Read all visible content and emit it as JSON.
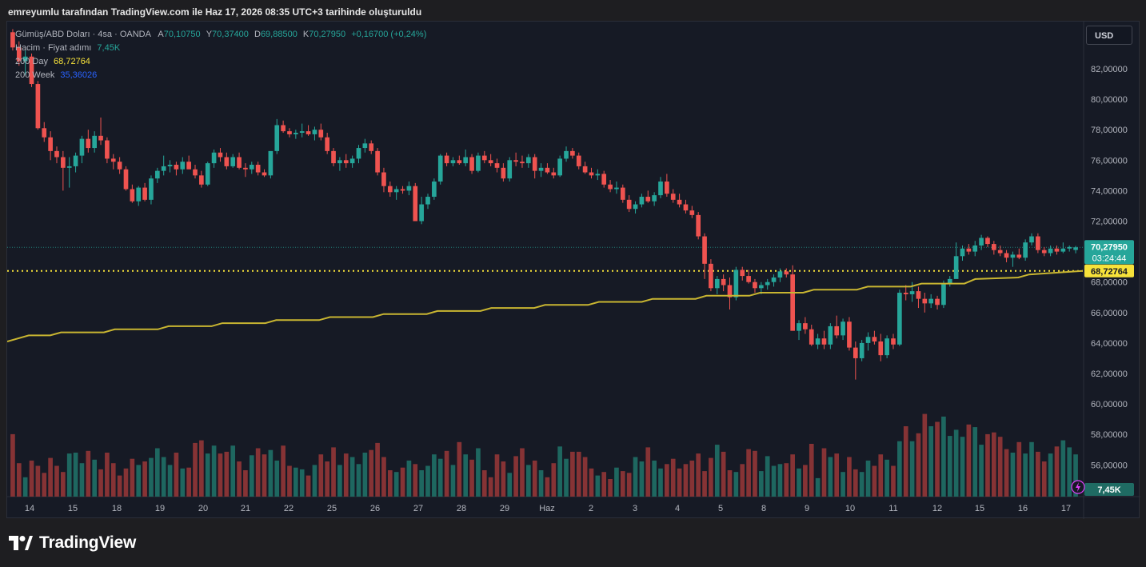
{
  "caption": "emreyumlu tarafından TradingView.com ile Haz 17, 2026 08:35 UTC+3 tarihinde oluşturuldu",
  "legend": {
    "symbol": "Gümüş/ABD Doları · 4sa · OANDA",
    "o_label": "A",
    "o": "70,10750",
    "h_label": "Y",
    "h": "70,37400",
    "l_label": "D",
    "l": "69,88500",
    "c_label": "K",
    "c": "70,27950",
    "change": "+0,16700 (+0,24%)",
    "volume_label": "Hacim · Fiyat adımı",
    "volume_value": "7,45K",
    "ma200d_label": "200 Day",
    "ma200d_value": "68,72764",
    "ma200w_label": "200 Week",
    "ma200w_value": "35,36026"
  },
  "currency": "USD",
  "brand": "TradingView",
  "colors": {
    "up": "#26a69a",
    "down": "#ef5350",
    "ma": "#c8b531",
    "panel": "#161a25"
  },
  "chart_data": {
    "type": "candlestick",
    "ylim": [
      61.5,
      84.2
    ],
    "y_ticks": [
      "82,00000",
      "80,00000",
      "78,00000",
      "76,00000",
      "74,00000",
      "72,00000",
      "70,00000",
      "68,00000",
      "66,00000",
      "64,00000",
      "62,00000",
      "60,00000",
      "58,00000",
      "56,00000"
    ],
    "x_ticks": [
      "14",
      "15",
      "18",
      "19",
      "20",
      "21",
      "22",
      "25",
      "26",
      "27",
      "28",
      "29",
      "Haz",
      "2",
      "3",
      "4",
      "5",
      "8",
      "9",
      "10",
      "11",
      "12",
      "15",
      "16",
      "17"
    ],
    "price_label": {
      "value": "70,27950",
      "countdown": "03:24:44"
    },
    "ma_label": "68,72764",
    "volume_label": "7,45K",
    "candles_ohlc": [
      [
        84.4,
        84.6,
        83.2,
        83.4
      ],
      [
        83.4,
        83.8,
        82.2,
        82.5
      ],
      [
        82.5,
        83.2,
        81.6,
        82.8
      ],
      [
        82.8,
        83.0,
        80.8,
        81.0
      ],
      [
        81.0,
        81.2,
        78.0,
        78.1
      ],
      [
        78.1,
        78.5,
        77.2,
        77.5
      ],
      [
        77.5,
        77.9,
        76.0,
        76.6
      ],
      [
        76.6,
        76.9,
        75.8,
        76.2
      ],
      [
        76.2,
        76.6,
        74.0,
        75.5
      ],
      [
        75.5,
        76.2,
        74.2,
        75.6
      ],
      [
        75.6,
        76.5,
        75.2,
        76.3
      ],
      [
        76.3,
        77.6,
        75.8,
        77.4
      ],
      [
        77.4,
        78.0,
        76.5,
        76.8
      ],
      [
        76.8,
        77.9,
        76.5,
        77.6
      ],
      [
        77.6,
        78.8,
        77.0,
        77.3
      ],
      [
        77.3,
        77.5,
        75.8,
        76.1
      ],
      [
        76.1,
        76.4,
        75.4,
        75.9
      ],
      [
        75.9,
        76.2,
        75.1,
        75.4
      ],
      [
        75.4,
        75.6,
        74.0,
        74.1
      ],
      [
        74.1,
        74.4,
        73.2,
        73.3
      ],
      [
        73.3,
        74.3,
        73.0,
        74.2
      ],
      [
        74.2,
        74.5,
        73.3,
        73.4
      ],
      [
        73.4,
        75.0,
        73.1,
        74.8
      ],
      [
        74.8,
        75.5,
        74.5,
        75.3
      ],
      [
        75.3,
        76.3,
        75.0,
        75.6
      ],
      [
        75.6,
        76.0,
        75.2,
        75.7
      ],
      [
        75.7,
        75.9,
        75.0,
        75.4
      ],
      [
        75.4,
        76.2,
        75.1,
        75.9
      ],
      [
        75.9,
        76.3,
        75.5,
        75.4
      ],
      [
        75.4,
        75.7,
        74.8,
        75.0
      ],
      [
        75.0,
        75.3,
        74.2,
        74.4
      ],
      [
        74.4,
        75.9,
        74.3,
        75.8
      ],
      [
        75.8,
        76.7,
        75.5,
        76.5
      ],
      [
        76.5,
        76.8,
        75.9,
        76.2
      ],
      [
        76.2,
        76.5,
        75.4,
        75.6
      ],
      [
        75.6,
        76.4,
        75.5,
        76.2
      ],
      [
        76.2,
        76.5,
        75.4,
        75.5
      ],
      [
        75.5,
        75.8,
        74.9,
        75.4
      ],
      [
        75.4,
        75.9,
        75.1,
        75.7
      ],
      [
        75.7,
        75.9,
        75.0,
        75.2
      ],
      [
        75.2,
        75.4,
        74.9,
        75.0
      ],
      [
        75.0,
        76.0,
        74.8,
        76.6
      ],
      [
        76.6,
        78.7,
        76.4,
        78.3
      ],
      [
        78.3,
        78.6,
        77.8,
        77.9
      ],
      [
        77.9,
        78.1,
        77.5,
        77.7
      ],
      [
        77.7,
        78.0,
        77.4,
        77.8
      ],
      [
        77.8,
        78.4,
        77.5,
        77.9
      ],
      [
        77.9,
        78.3,
        77.6,
        77.7
      ],
      [
        77.7,
        78.2,
        77.3,
        78.0
      ],
      [
        78.0,
        78.4,
        77.3,
        77.5
      ],
      [
        77.5,
        77.8,
        76.4,
        76.6
      ],
      [
        76.6,
        76.8,
        75.6,
        75.8
      ],
      [
        75.8,
        76.2,
        75.3,
        76.0
      ],
      [
        76.0,
        76.4,
        75.5,
        75.8
      ],
      [
        75.8,
        76.3,
        75.5,
        76.1
      ],
      [
        76.1,
        77.0,
        75.8,
        76.8
      ],
      [
        76.8,
        77.4,
        76.5,
        77.1
      ],
      [
        77.1,
        77.3,
        76.4,
        76.6
      ],
      [
        76.6,
        76.8,
        75.0,
        75.2
      ],
      [
        75.2,
        75.5,
        73.9,
        74.3
      ],
      [
        74.3,
        74.6,
        73.6,
        73.9
      ],
      [
        73.9,
        74.3,
        73.4,
        74.1
      ],
      [
        74.1,
        74.3,
        73.8,
        74.0
      ],
      [
        74.0,
        74.6,
        73.7,
        74.3
      ],
      [
        74.3,
        74.5,
        72.8,
        72.0
      ],
      [
        72.0,
        73.6,
        71.8,
        73.1
      ],
      [
        73.1,
        73.8,
        72.8,
        73.6
      ],
      [
        73.6,
        74.8,
        73.4,
        74.6
      ],
      [
        74.6,
        76.4,
        74.4,
        76.3
      ],
      [
        76.3,
        76.5,
        75.6,
        75.8
      ],
      [
        75.8,
        76.2,
        75.6,
        76.0
      ],
      [
        76.0,
        76.3,
        75.7,
        75.8
      ],
      [
        75.8,
        76.7,
        75.6,
        76.2
      ],
      [
        76.2,
        76.4,
        75.1,
        75.3
      ],
      [
        75.3,
        76.5,
        75.2,
        76.3
      ],
      [
        76.3,
        76.6,
        75.8,
        76.0
      ],
      [
        76.0,
        76.4,
        75.6,
        75.8
      ],
      [
        75.8,
        76.1,
        75.2,
        75.5
      ],
      [
        75.5,
        75.8,
        74.6,
        74.8
      ],
      [
        74.8,
        76.2,
        74.6,
        76.0
      ],
      [
        76.0,
        76.5,
        75.6,
        75.9
      ],
      [
        75.9,
        76.3,
        75.5,
        75.8
      ],
      [
        75.8,
        76.4,
        75.5,
        76.2
      ],
      [
        76.2,
        76.4,
        74.8,
        75.3
      ],
      [
        75.3,
        75.8,
        74.9,
        75.5
      ],
      [
        75.5,
        75.8,
        75.1,
        75.2
      ],
      [
        75.2,
        75.5,
        74.8,
        75.0
      ],
      [
        75.0,
        76.3,
        74.9,
        76.1
      ],
      [
        76.1,
        76.9,
        75.9,
        76.6
      ],
      [
        76.6,
        76.8,
        76.1,
        76.3
      ],
      [
        76.3,
        76.5,
        75.4,
        75.6
      ],
      [
        75.6,
        75.9,
        75.1,
        75.2
      ],
      [
        75.2,
        75.5,
        74.8,
        75.0
      ],
      [
        75.0,
        75.4,
        74.7,
        75.1
      ],
      [
        75.1,
        75.3,
        74.2,
        74.4
      ],
      [
        74.4,
        74.7,
        73.9,
        74.1
      ],
      [
        74.1,
        74.6,
        73.8,
        74.2
      ],
      [
        74.2,
        74.4,
        73.2,
        73.4
      ],
      [
        73.4,
        73.7,
        72.6,
        72.8
      ],
      [
        72.8,
        73.3,
        72.5,
        73.1
      ],
      [
        73.1,
        73.8,
        72.9,
        73.6
      ],
      [
        73.6,
        74.0,
        73.2,
        73.3
      ],
      [
        73.3,
        73.9,
        73.0,
        73.7
      ],
      [
        73.7,
        74.9,
        73.5,
        74.6
      ],
      [
        74.6,
        75.1,
        73.6,
        73.8
      ],
      [
        73.8,
        74.1,
        73.2,
        73.4
      ],
      [
        73.4,
        73.8,
        72.9,
        73.1
      ],
      [
        73.1,
        73.4,
        72.5,
        72.7
      ],
      [
        72.7,
        73.0,
        72.2,
        72.4
      ],
      [
        72.4,
        72.6,
        70.8,
        71.0
      ],
      [
        71.0,
        71.2,
        68.2,
        69.2
      ],
      [
        69.2,
        69.5,
        67.4,
        67.6
      ],
      [
        67.6,
        68.4,
        67.2,
        68.2
      ],
      [
        68.2,
        68.5,
        67.4,
        67.8
      ],
      [
        67.8,
        68.3,
        66.2,
        67.0
      ],
      [
        67.0,
        69.0,
        66.8,
        68.8
      ],
      [
        68.8,
        69.0,
        68.1,
        68.4
      ],
      [
        68.4,
        68.8,
        67.9,
        68.0
      ],
      [
        68.0,
        68.2,
        67.3,
        67.6
      ],
      [
        67.6,
        68.0,
        67.2,
        67.8
      ],
      [
        67.8,
        68.2,
        67.5,
        68.0
      ],
      [
        68.0,
        68.5,
        67.7,
        68.3
      ],
      [
        68.3,
        68.9,
        68.0,
        68.7
      ],
      [
        68.7,
        68.9,
        68.3,
        68.5
      ],
      [
        68.5,
        69.1,
        67.9,
        64.8
      ],
      [
        64.8,
        65.5,
        64.2,
        65.3
      ],
      [
        65.3,
        65.7,
        64.6,
        64.9
      ],
      [
        64.9,
        65.2,
        63.8,
        63.9
      ],
      [
        63.9,
        64.6,
        63.6,
        64.3
      ],
      [
        64.3,
        64.8,
        63.6,
        63.9
      ],
      [
        63.9,
        65.3,
        63.6,
        65.1
      ],
      [
        65.1,
        65.8,
        64.3,
        64.5
      ],
      [
        64.5,
        65.6,
        64.2,
        65.4
      ],
      [
        65.4,
        65.7,
        63.5,
        63.7
      ],
      [
        63.7,
        64.1,
        61.6,
        63.0
      ],
      [
        63.0,
        64.2,
        62.8,
        64.0
      ],
      [
        64.0,
        64.7,
        63.5,
        64.4
      ],
      [
        64.4,
        64.8,
        63.9,
        64.1
      ],
      [
        64.1,
        64.6,
        62.8,
        63.2
      ],
      [
        63.2,
        64.5,
        63.0,
        64.3
      ],
      [
        64.3,
        64.6,
        63.6,
        63.9
      ],
      [
        63.9,
        67.5,
        63.8,
        67.3
      ],
      [
        67.3,
        67.8,
        66.8,
        67.2
      ],
      [
        67.2,
        68.0,
        66.7,
        67.4
      ],
      [
        67.4,
        67.7,
        66.3,
        66.9
      ],
      [
        66.9,
        67.3,
        66.0,
        66.6
      ],
      [
        66.6,
        67.2,
        66.3,
        66.9
      ],
      [
        66.9,
        67.1,
        66.2,
        66.5
      ],
      [
        66.5,
        68.1,
        66.3,
        67.9
      ],
      [
        67.9,
        68.4,
        67.7,
        68.2
      ],
      [
        68.2,
        70.6,
        69.2,
        69.7
      ],
      [
        69.7,
        70.4,
        69.4,
        70.2
      ],
      [
        70.2,
        70.5,
        69.8,
        70.0
      ],
      [
        70.0,
        70.7,
        69.7,
        70.4
      ],
      [
        70.4,
        71.1,
        70.1,
        70.9
      ],
      [
        70.9,
        71.0,
        70.3,
        70.5
      ],
      [
        70.5,
        70.7,
        69.8,
        70.1
      ],
      [
        70.1,
        70.4,
        69.7,
        69.9
      ],
      [
        69.9,
        70.1,
        69.3,
        69.6
      ],
      [
        69.6,
        70.0,
        69.0,
        69.8
      ],
      [
        69.8,
        70.2,
        69.5,
        69.6
      ],
      [
        69.6,
        70.8,
        69.4,
        70.6
      ],
      [
        70.6,
        71.2,
        70.4,
        71.0
      ],
      [
        71.0,
        71.2,
        69.9,
        70.1
      ],
      [
        70.1,
        70.3,
        69.7,
        69.9
      ],
      [
        69.9,
        70.4,
        69.7,
        70.2
      ],
      [
        70.2,
        70.4,
        69.8,
        70.0
      ],
      [
        70.0,
        70.6,
        69.9,
        70.2
      ],
      [
        70.2,
        70.4,
        70.0,
        70.3
      ],
      [
        70.1075,
        70.374,
        69.885,
        70.2795
      ]
    ],
    "volume_max": 1.0,
    "volumes": [
      0.71,
      0.38,
      0.22,
      0.41,
      0.35,
      0.27,
      0.44,
      0.35,
      0.28,
      0.49,
      0.5,
      0.38,
      0.52,
      0.42,
      0.31,
      0.5,
      0.38,
      0.24,
      0.32,
      0.43,
      0.36,
      0.4,
      0.44,
      0.55,
      0.45,
      0.36,
      0.5,
      0.32,
      0.33,
      0.61,
      0.64,
      0.49,
      0.58,
      0.49,
      0.51,
      0.58,
      0.4,
      0.3,
      0.47,
      0.55,
      0.48,
      0.53,
      0.41,
      0.58,
      0.35,
      0.33,
      0.31,
      0.24,
      0.36,
      0.48,
      0.4,
      0.56,
      0.36,
      0.49,
      0.45,
      0.37,
      0.5,
      0.53,
      0.61,
      0.45,
      0.3,
      0.28,
      0.33,
      0.41,
      0.37,
      0.3,
      0.35,
      0.48,
      0.43,
      0.52,
      0.36,
      0.62,
      0.48,
      0.42,
      0.55,
      0.3,
      0.22,
      0.48,
      0.4,
      0.27,
      0.46,
      0.55,
      0.36,
      0.41,
      0.3,
      0.22,
      0.38,
      0.57,
      0.43,
      0.51,
      0.51,
      0.45,
      0.32,
      0.24,
      0.28,
      0.2,
      0.33,
      0.29,
      0.27,
      0.45,
      0.4,
      0.56,
      0.41,
      0.32,
      0.37,
      0.43,
      0.32,
      0.37,
      0.41,
      0.49,
      0.29,
      0.44,
      0.59,
      0.51,
      0.3,
      0.28,
      0.37,
      0.54,
      0.52,
      0.29,
      0.46,
      0.35,
      0.37,
      0.38,
      0.48,
      0.32,
      0.36,
      0.6,
      0.21,
      0.55,
      0.45,
      0.49,
      0.28,
      0.45,
      0.31,
      0.28,
      0.41,
      0.35,
      0.48,
      0.42,
      0.35,
      0.63,
      0.8,
      0.63,
      0.72,
      0.94,
      0.8,
      0.85,
      0.91,
      0.69,
      0.76,
      0.68,
      0.82,
      0.79,
      0.59,
      0.71,
      0.73,
      0.68,
      0.54,
      0.5,
      0.62,
      0.49,
      0.62,
      0.51,
      0.4,
      0.49,
      0.57,
      0.64,
      0.56,
      0.48,
      0.74,
      0.49,
      0.47,
      0.56,
      0.61,
      0.49,
      0.37,
      0.3,
      0.38,
      0.37,
      0.3,
      0.5,
      0.45,
      0.4,
      0.7,
      0.42,
      0.36,
      0.32,
      0.31,
      0.31,
      0.28,
      0.37,
      0.36,
      0.23
    ],
    "ma_200day": [
      [
        0,
        64.1
      ],
      [
        0.02,
        64.5
      ],
      [
        0.04,
        64.5
      ],
      [
        0.05,
        64.7
      ],
      [
        0.09,
        64.7
      ],
      [
        0.1,
        64.9
      ],
      [
        0.14,
        64.9
      ],
      [
        0.15,
        65.1
      ],
      [
        0.19,
        65.1
      ],
      [
        0.2,
        65.3
      ],
      [
        0.24,
        65.3
      ],
      [
        0.25,
        65.5
      ],
      [
        0.29,
        65.5
      ],
      [
        0.3,
        65.7
      ],
      [
        0.34,
        65.7
      ],
      [
        0.35,
        65.9
      ],
      [
        0.39,
        65.9
      ],
      [
        0.4,
        66.1
      ],
      [
        0.44,
        66.1
      ],
      [
        0.45,
        66.3
      ],
      [
        0.49,
        66.3
      ],
      [
        0.5,
        66.5
      ],
      [
        0.54,
        66.5
      ],
      [
        0.55,
        66.7
      ],
      [
        0.59,
        66.7
      ],
      [
        0.6,
        66.9
      ],
      [
        0.64,
        66.9
      ],
      [
        0.65,
        67.1
      ],
      [
        0.69,
        67.1
      ],
      [
        0.7,
        67.3
      ],
      [
        0.74,
        67.3
      ],
      [
        0.75,
        67.5
      ],
      [
        0.79,
        67.5
      ],
      [
        0.8,
        67.7
      ],
      [
        0.84,
        67.7
      ],
      [
        0.85,
        67.9
      ],
      [
        0.89,
        67.9
      ],
      [
        0.9,
        68.2
      ],
      [
        0.94,
        68.3
      ],
      [
        0.95,
        68.5
      ],
      [
        1.0,
        68.73
      ]
    ]
  }
}
